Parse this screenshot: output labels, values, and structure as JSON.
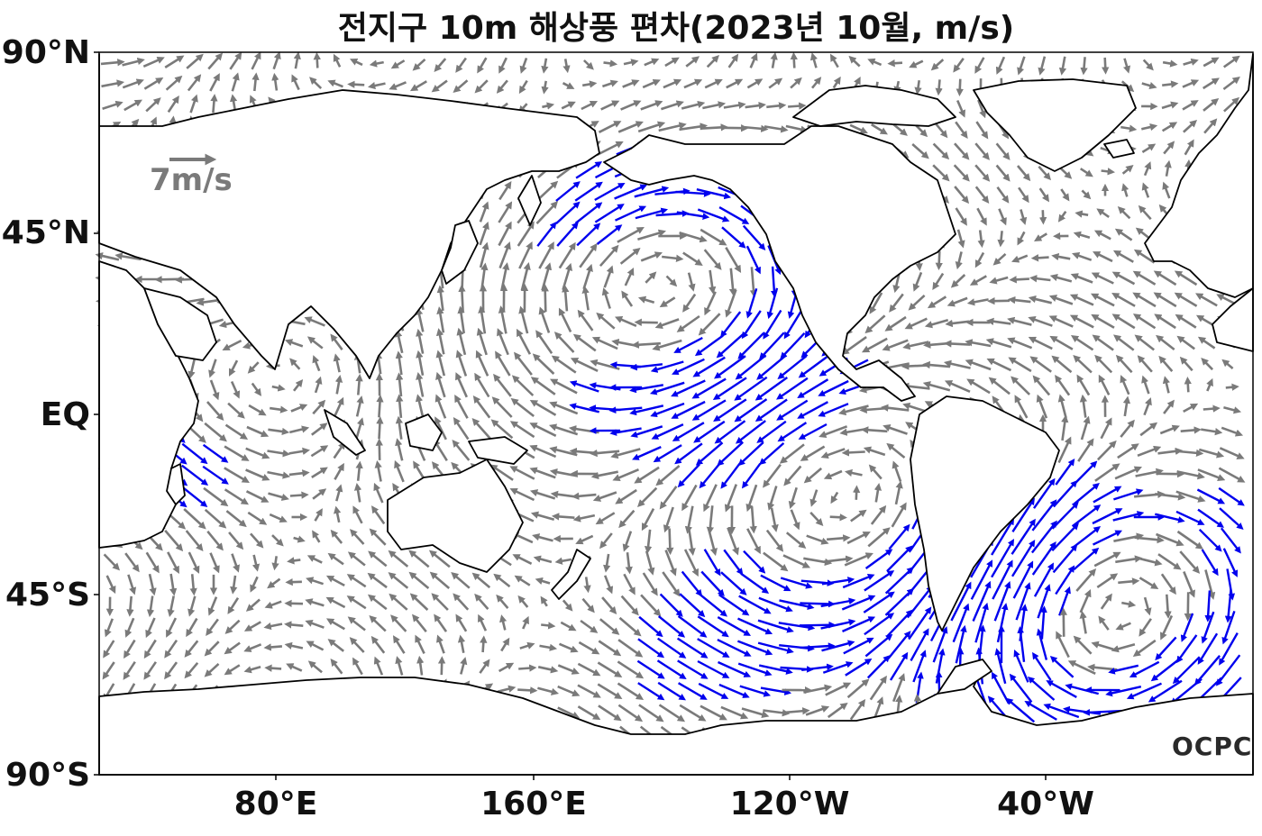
{
  "title": "전지구 10m 해상풍 편차(2023년 10월, m/s)",
  "lat_labels": [
    "90°N",
    "45°N",
    "EQ",
    "45°S",
    "90°S"
  ],
  "lon_labels": [
    "80°E",
    "160°E",
    "120°W",
    "40°W"
  ],
  "reference_vector": {
    "label": "7m/s",
    "magnitude": 7,
    "color": "#7a7a7a"
  },
  "logo_text": "OCPC",
  "colors": {
    "normal_vector": "#7a7a7a",
    "strong_vector": "#0000ee",
    "coastline": "#000000"
  },
  "map_extent": {
    "lon_min": 25,
    "lon_max": 385,
    "lat_min": -90,
    "lat_max": 90
  }
}
